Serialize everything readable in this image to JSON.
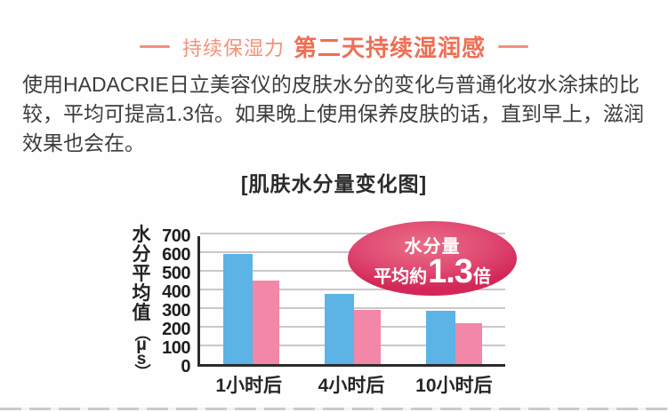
{
  "header": {
    "light": "持续保湿力",
    "bold": "第二天持续湿润感"
  },
  "paragraph_lines": [
    "使用HADACRIE日立美容仪的皮肤水分的变化与普通化妆水涂抹的比",
    "较，平均可提高1.3倍。如果晚上使用保养皮肤的话，直到早上，滋润",
    "效果也会在。"
  ],
  "badge": {
    "line1": "水分量",
    "prefix": "平均約",
    "value": "1.3",
    "suffix": "倍"
  },
  "colors": {
    "accent_light": "#F2917B",
    "accent_bold": "#EE6F55",
    "bar_blue": "#5BB4E5",
    "bar_pink": "#F287A7",
    "badge_center": "#EA6E88",
    "badge_edge": "#D22757",
    "axis": "#2B2B2B",
    "grid": "#CBC7C7",
    "text": "#3C3C3C"
  },
  "chart_data": {
    "type": "bar",
    "title": "[肌肤水分量变化图]",
    "categories": [
      "1小时后",
      "4小时后",
      "10小时后"
    ],
    "series": [
      {
        "name": "hadacrie-blue",
        "color": "#5BB4E5",
        "values": [
          590,
          375,
          285
        ]
      },
      {
        "name": "lotion-pink",
        "color": "#F287A7",
        "values": [
          450,
          290,
          220
        ]
      }
    ],
    "ylabel": "水分平均值（μs）",
    "yticks": [
      0,
      100,
      200,
      300,
      400,
      500,
      600,
      700
    ],
    "ylim": [
      0,
      700
    ],
    "grid": true,
    "legend_position": "none",
    "annotation": "水分量 平均約1.3倍"
  }
}
